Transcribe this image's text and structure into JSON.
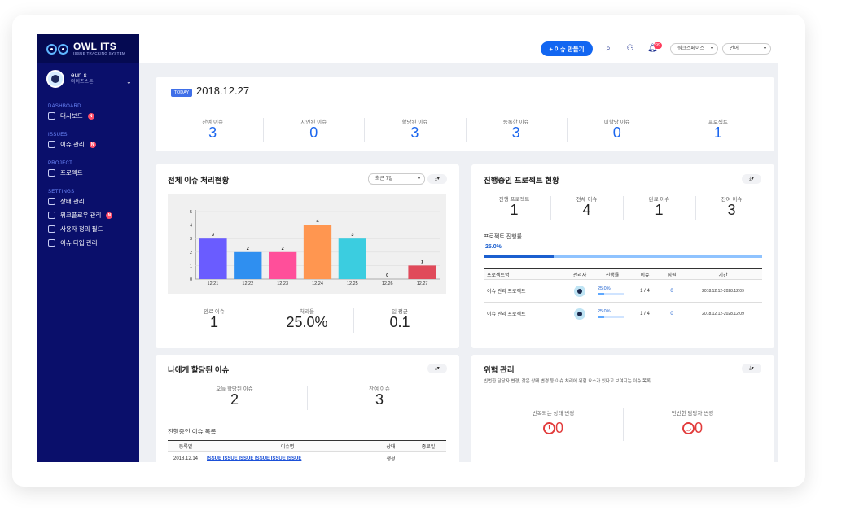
{
  "brand": {
    "title": "OWL ITS",
    "subtitle": "ISSUE TRACKING SYSTEM"
  },
  "user": {
    "name": "eun s",
    "role": "와이즈스톤"
  },
  "sidebar": {
    "sections": [
      {
        "label": "DASHBOARD",
        "items": [
          {
            "label": "대시보드",
            "badge": "N"
          }
        ]
      },
      {
        "label": "ISSUES",
        "items": [
          {
            "label": "이슈 관리",
            "badge": "N"
          }
        ]
      },
      {
        "label": "PROJECT",
        "items": [
          {
            "label": "프로젝트",
            "badge": ""
          }
        ]
      },
      {
        "label": "SETTINGS",
        "items": [
          {
            "label": "상태 관리",
            "badge": ""
          },
          {
            "label": "워크플로우 관리",
            "badge": "N"
          },
          {
            "label": "사용자 정의 필드",
            "badge": ""
          },
          {
            "label": "이슈 타입 관리",
            "badge": ""
          }
        ]
      }
    ]
  },
  "topbar": {
    "create_label": "+ 이슈 만들기",
    "bell_count": "99",
    "workspace_select": "워크스페이스",
    "language_select": "언어"
  },
  "summary": {
    "today_label": "TODAY",
    "date": "2018.12.27",
    "stats": [
      {
        "label": "잔여 이슈",
        "value": "3"
      },
      {
        "label": "지연된 이슈",
        "value": "0"
      },
      {
        "label": "할당된 이슈",
        "value": "3"
      },
      {
        "label": "등록한 이슈",
        "value": "3"
      },
      {
        "label": "미할당 이슈",
        "value": "0"
      },
      {
        "label": "프로젝트",
        "value": "1"
      }
    ]
  },
  "processing": {
    "title": "전체 이슈 처리현황",
    "period_select": "최근 7일",
    "stats": [
      {
        "label": "완료 이슈",
        "value": "1"
      },
      {
        "label": "처리율",
        "value": "25.0%"
      },
      {
        "label": "일 평균",
        "value": "0.1"
      }
    ]
  },
  "chart_data": {
    "type": "bar",
    "categories": [
      "12.21",
      "12.22",
      "12.23",
      "12.24",
      "12.25",
      "12.26",
      "12.27"
    ],
    "values": [
      3,
      2,
      2,
      4,
      3,
      0,
      1
    ],
    "data_labels": [
      "3",
      "2",
      "2",
      "4",
      "3",
      "0",
      "1"
    ],
    "colors": [
      "#6a5cff",
      "#2f8ff0",
      "#ff4f9a",
      "#ff9650",
      "#3bcde0",
      "#9aa0a6",
      "#e04a5a"
    ],
    "ylim": [
      0,
      5
    ],
    "yticks": [
      "0",
      "1",
      "2",
      "3",
      "4",
      "5"
    ],
    "grid": true
  },
  "projects": {
    "title": "진행중인 프로젝트 현황",
    "stats": [
      {
        "label": "진행 프로젝트",
        "value": "1"
      },
      {
        "label": "전체 이슈",
        "value": "4"
      },
      {
        "label": "완료 이슈",
        "value": "1"
      },
      {
        "label": "잔여 이슈",
        "value": "3"
      }
    ],
    "progress_label": "프로젝트 진행률",
    "progress_text": "25.0%",
    "progress_value": 0.25,
    "columns": [
      "프로젝트명",
      "관리자",
      "진행률",
      "이슈",
      "팀원",
      "기간"
    ],
    "rows": [
      {
        "name": "이슈 관리 프로젝트",
        "progress": "25.0%",
        "progress_value": 0.25,
        "issues": "1 / 4",
        "members": "0",
        "period": "2018.12.12-2028.12.09"
      },
      {
        "name": "이슈 관리 프로젝트",
        "progress": "25.0%",
        "progress_value": 0.25,
        "issues": "1 / 4",
        "members": "0",
        "period": "2018.12.12-2028.12.09"
      }
    ]
  },
  "assigned": {
    "title": "나에게 할당된 이슈",
    "stats": [
      {
        "label": "오늘 할당된 이슈",
        "value": "2"
      },
      {
        "label": "잔여 이슈",
        "value": "3"
      }
    ],
    "list_title": "진행중인 이슈 목록",
    "columns": [
      "등록일",
      "이슈명",
      "상태",
      "종료일"
    ],
    "rows": [
      {
        "date": "2018.12.14",
        "name": "ISSUE ISSUE ISSUE ISSUE ISSUE ISSUE",
        "status": "생성",
        "end": ""
      }
    ]
  },
  "risk": {
    "title": "위험 관리",
    "description": "빈번한 담당자 변경, 잦은 상태 변경 등 이슈 처리에 위험 요소가 있다고 보여지는 이슈 목록",
    "items": [
      {
        "label": "반복되는 상태 변경",
        "value": "0",
        "icon": "alert-icon"
      },
      {
        "label": "빈번한 담당자 변경",
        "value": "0",
        "icon": "user-icon"
      }
    ]
  }
}
